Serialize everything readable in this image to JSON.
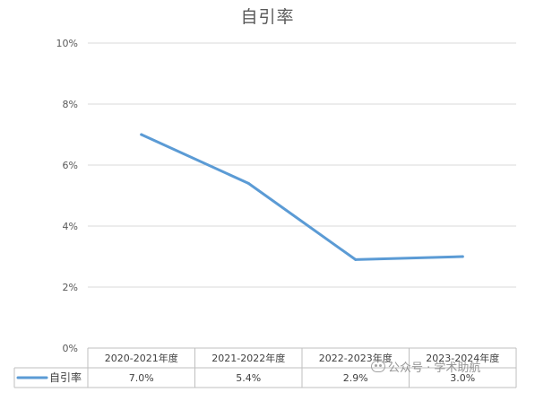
{
  "chart_data": {
    "type": "line",
    "title": "自引率",
    "categories": [
      "2020-2021年度",
      "2021-2022年度",
      "2022-2023年度",
      "2023-2024年度"
    ],
    "series": [
      {
        "name": "自引率",
        "values": [
          7.0,
          5.4,
          2.9,
          3.0
        ],
        "color": "#5B9BD5"
      }
    ],
    "table_values": [
      "7.0%",
      "5.4%",
      "2.9%",
      "3.0%"
    ],
    "y_ticks": [
      "0%",
      "2%",
      "4%",
      "6%",
      "8%",
      "10%"
    ],
    "ylim": [
      0,
      10
    ],
    "grid": true,
    "legend": "data-table"
  },
  "watermark": {
    "text": "公众号 · 学术助航"
  }
}
